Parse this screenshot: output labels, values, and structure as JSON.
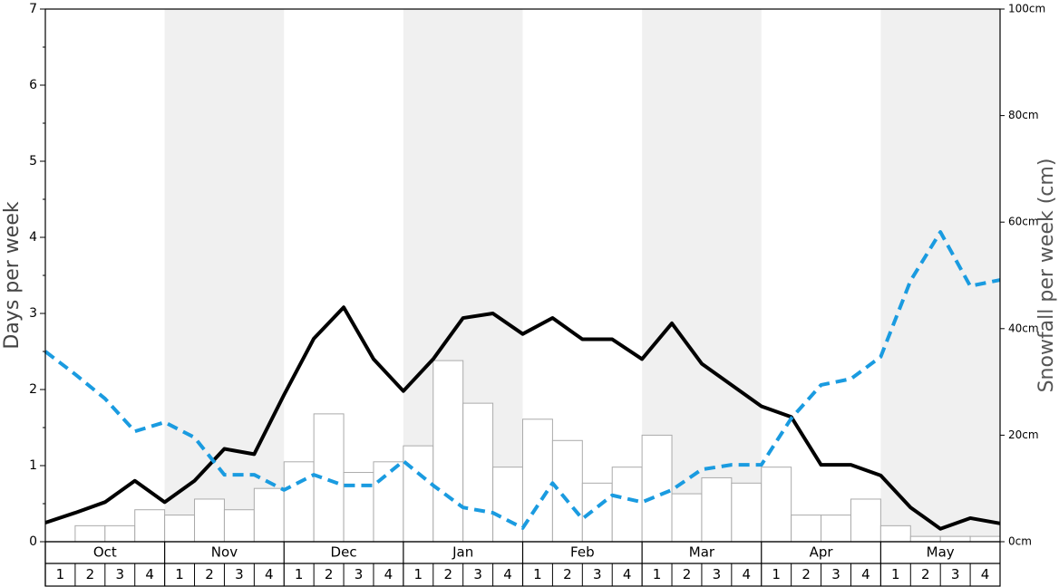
{
  "chart_data": {
    "type": "bar_line",
    "y_label": "Days per week",
    "y2_label": "Snowfall per week (cm)",
    "months": [
      "Oct",
      "Nov",
      "Dec",
      "Jan",
      "Feb",
      "Mar",
      "Apr",
      "May"
    ],
    "weeks": [
      "1",
      "2",
      "3",
      "4"
    ],
    "ylim": [
      0,
      7
    ],
    "yticks": [
      0,
      1,
      2,
      3,
      4,
      5,
      6,
      7
    ],
    "y2lim": [
      0,
      100
    ],
    "y2ticks": [
      {
        "value": 0,
        "label": "0cm"
      },
      {
        "value": 20,
        "label": "20cm"
      },
      {
        "value": 40,
        "label": "40cm"
      },
      {
        "value": 60,
        "label": "60cm"
      },
      {
        "value": 80,
        "label": "80cm"
      },
      {
        "value": 100,
        "label": "100cm"
      }
    ],
    "shade_color": "#f0f0f0",
    "bars": {
      "axis": "y2",
      "color": "#ffffff",
      "edge": "#aaaaaa",
      "values": [
        0,
        3,
        3,
        6,
        5,
        8,
        6,
        10,
        15,
        24,
        13,
        15,
        18,
        34,
        26,
        14,
        23,
        19,
        11,
        14,
        20,
        9,
        12,
        11,
        14,
        5,
        5,
        8,
        3,
        1,
        1,
        1
      ]
    },
    "series": [
      {
        "color": "#000000",
        "dash": false,
        "values": [
          0.25,
          0.38,
          0.52,
          0.8,
          0.52,
          0.8,
          1.22,
          1.15,
          1.93,
          2.67,
          3.08,
          2.4,
          1.98,
          2.4,
          2.94,
          3.0,
          2.73,
          2.94,
          2.66,
          2.66,
          2.4,
          2.87,
          2.34,
          2.06,
          1.78,
          1.64,
          1.01,
          1.01,
          0.87,
          0.45,
          0.17,
          0.31,
          0.24
        ]
      },
      {
        "color": "#1a9be0",
        "dash": true,
        "values": [
          2.5,
          2.2,
          1.88,
          1.45,
          1.57,
          1.37,
          0.88,
          0.88,
          0.68,
          0.88,
          0.74,
          0.74,
          1.06,
          0.74,
          0.45,
          0.38,
          0.18,
          0.77,
          0.3,
          0.61,
          0.52,
          0.68,
          0.95,
          1.01,
          1.01,
          1.62,
          2.06,
          2.14,
          2.43,
          3.43,
          4.07,
          3.36,
          3.44
        ]
      }
    ]
  }
}
